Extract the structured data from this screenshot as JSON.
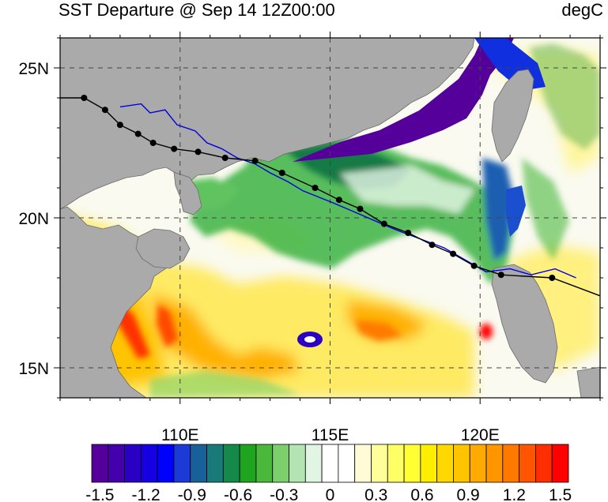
{
  "header": {
    "title": "SST Departure @ Sep 14 12Z00:00",
    "units": "degC"
  },
  "map": {
    "lon_range": [
      106,
      124
    ],
    "lat_range": [
      14,
      26
    ],
    "lon_ticks": [
      {
        "value": 110,
        "label": "110E"
      },
      {
        "value": 115,
        "label": "115E"
      },
      {
        "value": 120,
        "label": "120E"
      }
    ],
    "lat_ticks": [
      {
        "value": 15,
        "label": "15N"
      },
      {
        "value": 20,
        "label": "20N"
      },
      {
        "value": 25,
        "label": "25N"
      }
    ],
    "gridlines": true,
    "land_color": "#aaaaaa"
  },
  "tracks": {
    "black_track": [
      {
        "lon": 106.0,
        "lat": 24.0
      },
      {
        "lon": 106.8,
        "lat": 24.0
      },
      {
        "lon": 107.5,
        "lat": 23.6
      },
      {
        "lon": 108.0,
        "lat": 23.1
      },
      {
        "lon": 108.6,
        "lat": 22.8
      },
      {
        "lon": 109.1,
        "lat": 22.5
      },
      {
        "lon": 109.8,
        "lat": 22.3
      },
      {
        "lon": 110.6,
        "lat": 22.2
      },
      {
        "lon": 111.5,
        "lat": 22.0
      },
      {
        "lon": 112.5,
        "lat": 21.9
      },
      {
        "lon": 113.4,
        "lat": 21.5
      },
      {
        "lon": 114.5,
        "lat": 21.0
      },
      {
        "lon": 115.3,
        "lat": 20.6
      },
      {
        "lon": 116.0,
        "lat": 20.3
      },
      {
        "lon": 116.8,
        "lat": 19.8
      },
      {
        "lon": 117.6,
        "lat": 19.5
      },
      {
        "lon": 118.4,
        "lat": 19.1
      },
      {
        "lon": 119.1,
        "lat": 18.8
      },
      {
        "lon": 119.8,
        "lat": 18.4
      },
      {
        "lon": 120.7,
        "lat": 18.1
      },
      {
        "lon": 122.4,
        "lat": 18.0
      },
      {
        "lon": 124.0,
        "lat": 17.4
      }
    ],
    "black_markers": [
      {
        "lon": 106.8,
        "lat": 24.0
      },
      {
        "lon": 107.5,
        "lat": 23.6
      },
      {
        "lon": 108.0,
        "lat": 23.1
      },
      {
        "lon": 108.6,
        "lat": 22.8
      },
      {
        "lon": 109.1,
        "lat": 22.5
      },
      {
        "lon": 109.8,
        "lat": 22.3
      },
      {
        "lon": 110.6,
        "lat": 22.2
      },
      {
        "lon": 111.5,
        "lat": 22.0
      },
      {
        "lon": 112.5,
        "lat": 21.9
      },
      {
        "lon": 113.4,
        "lat": 21.5
      },
      {
        "lon": 114.5,
        "lat": 21.0
      },
      {
        "lon": 115.3,
        "lat": 20.6
      },
      {
        "lon": 116.0,
        "lat": 20.3
      },
      {
        "lon": 116.8,
        "lat": 19.8
      },
      {
        "lon": 117.6,
        "lat": 19.5
      },
      {
        "lon": 118.4,
        "lat": 19.1
      },
      {
        "lon": 119.1,
        "lat": 18.8
      },
      {
        "lon": 119.8,
        "lat": 18.4
      },
      {
        "lon": 120.7,
        "lat": 18.1
      },
      {
        "lon": 122.4,
        "lat": 18.0
      }
    ],
    "blue_track": [
      {
        "lon": 108.0,
        "lat": 23.7
      },
      {
        "lon": 108.7,
        "lat": 23.8
      },
      {
        "lon": 109.0,
        "lat": 23.5
      },
      {
        "lon": 109.5,
        "lat": 23.6
      },
      {
        "lon": 109.9,
        "lat": 23.1
      },
      {
        "lon": 110.5,
        "lat": 22.9
      },
      {
        "lon": 110.9,
        "lat": 22.5
      },
      {
        "lon": 111.4,
        "lat": 22.3
      },
      {
        "lon": 111.9,
        "lat": 22.0
      },
      {
        "lon": 112.5,
        "lat": 21.8
      },
      {
        "lon": 113.0,
        "lat": 21.5
      },
      {
        "lon": 113.6,
        "lat": 21.2
      },
      {
        "lon": 114.1,
        "lat": 20.9
      },
      {
        "lon": 114.6,
        "lat": 20.7
      },
      {
        "lon": 115.1,
        "lat": 20.5
      },
      {
        "lon": 115.8,
        "lat": 20.2
      },
      {
        "lon": 116.5,
        "lat": 19.9
      },
      {
        "lon": 117.2,
        "lat": 19.6
      },
      {
        "lon": 118.0,
        "lat": 19.3
      },
      {
        "lon": 118.8,
        "lat": 19.0
      },
      {
        "lon": 119.5,
        "lat": 18.6
      },
      {
        "lon": 120.2,
        "lat": 18.2
      },
      {
        "lon": 121.0,
        "lat": 18.3
      },
      {
        "lon": 121.7,
        "lat": 18.1
      },
      {
        "lon": 122.5,
        "lat": 18.3
      },
      {
        "lon": 123.2,
        "lat": 18.0
      }
    ]
  },
  "colorbar": {
    "colors": [
      "#55009a",
      "#4500ad",
      "#2a00c5",
      "#1400e0",
      "#0000ff",
      "#1c3bd6",
      "#18609a",
      "#1a7a7a",
      "#15894a",
      "#1ea41e",
      "#4ab83a",
      "#7cd06c",
      "#b4e4b4",
      "#e2f4e2",
      "#ffffff",
      "#ffffff",
      "#fffbd6",
      "#ffff99",
      "#ffff66",
      "#ffff33",
      "#ffee00",
      "#ffd800",
      "#ffc400",
      "#ffaa00",
      "#ff9600",
      "#ff7800",
      "#ff5500",
      "#ff2e00",
      "#ff0000"
    ],
    "tick_labels": [
      "-1.5",
      "-1.2",
      "-0.9",
      "-0.6",
      "-0.3",
      "0",
      "0.3",
      "0.6",
      "0.9",
      "1.2",
      "1.5"
    ]
  }
}
